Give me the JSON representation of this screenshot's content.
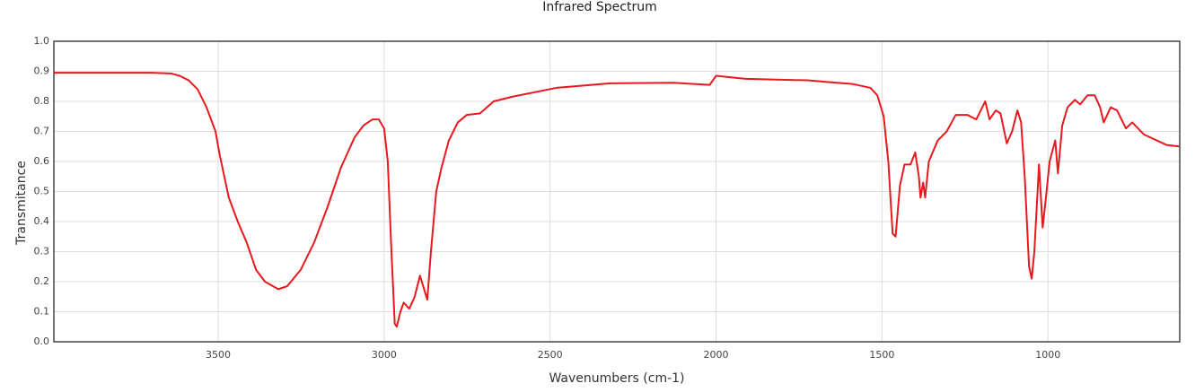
{
  "chart_data": {
    "type": "line",
    "title": "Infrared Spectrum",
    "x_label": "Wavenumbers (cm-1)",
    "y_label": "Transmitance",
    "x": [
      3995,
      3900,
      3700,
      3643,
      3616,
      3589,
      3562,
      3535,
      3508,
      3495,
      3468,
      3441,
      3414,
      3386,
      3359,
      3319,
      3292,
      3251,
      3211,
      3170,
      3130,
      3089,
      3062,
      3035,
      3016,
      3000,
      2989,
      2978,
      2968,
      2962,
      2951,
      2941,
      2924,
      2908,
      2892,
      2881,
      2870,
      2859,
      2843,
      2827,
      2805,
      2778,
      2751,
      2711,
      2670,
      2616,
      2481,
      2427,
      2319,
      2130,
      2019,
      2000,
      1911,
      1724,
      1670,
      1589,
      1535,
      1514,
      1495,
      1481,
      1468,
      1459,
      1446,
      1432,
      1414,
      1400,
      1389,
      1384,
      1376,
      1370,
      1359,
      1332,
      1305,
      1278,
      1243,
      1216,
      1189,
      1176,
      1157,
      1143,
      1124,
      1108,
      1092,
      1081,
      1070,
      1057,
      1049,
      1041,
      1027,
      1016,
      1008,
      995,
      978,
      970,
      957,
      941,
      919,
      903,
      881,
      859,
      843,
      832,
      811,
      792,
      765,
      746,
      711,
      643,
      605
    ],
    "values": [
      0.895,
      0.895,
      0.895,
      0.893,
      0.885,
      0.87,
      0.84,
      0.78,
      0.7,
      0.62,
      0.48,
      0.4,
      0.33,
      0.24,
      0.2,
      0.175,
      0.185,
      0.24,
      0.33,
      0.45,
      0.58,
      0.68,
      0.72,
      0.74,
      0.74,
      0.71,
      0.6,
      0.3,
      0.06,
      0.05,
      0.1,
      0.13,
      0.11,
      0.15,
      0.22,
      0.18,
      0.14,
      0.3,
      0.5,
      0.58,
      0.67,
      0.73,
      0.755,
      0.76,
      0.8,
      0.815,
      0.845,
      0.85,
      0.86,
      0.862,
      0.855,
      0.885,
      0.875,
      0.87,
      0.865,
      0.858,
      0.845,
      0.82,
      0.75,
      0.6,
      0.36,
      0.35,
      0.52,
      0.59,
      0.59,
      0.63,
      0.55,
      0.48,
      0.53,
      0.48,
      0.6,
      0.67,
      0.7,
      0.755,
      0.755,
      0.74,
      0.8,
      0.74,
      0.77,
      0.76,
      0.66,
      0.7,
      0.77,
      0.73,
      0.55,
      0.25,
      0.21,
      0.3,
      0.59,
      0.38,
      0.46,
      0.6,
      0.67,
      0.56,
      0.72,
      0.78,
      0.805,
      0.79,
      0.82,
      0.82,
      0.78,
      0.73,
      0.78,
      0.77,
      0.71,
      0.73,
      0.69,
      0.655,
      0.65
    ],
    "color": "#e8191e",
    "xlim": [
      3995,
      603
    ],
    "xticks": [
      3500,
      3000,
      2500,
      2000,
      1500,
      1000
    ],
    "ylim": [
      0,
      1
    ],
    "yticks": [
      {
        "value": 0,
        "label": "0.0"
      },
      0.1,
      0.2,
      0.3,
      0.4,
      0.5,
      0.6,
      0.7,
      0.8,
      0.9,
      {
        "value": 1,
        "label": "1.0"
      }
    ],
    "grid": true
  }
}
